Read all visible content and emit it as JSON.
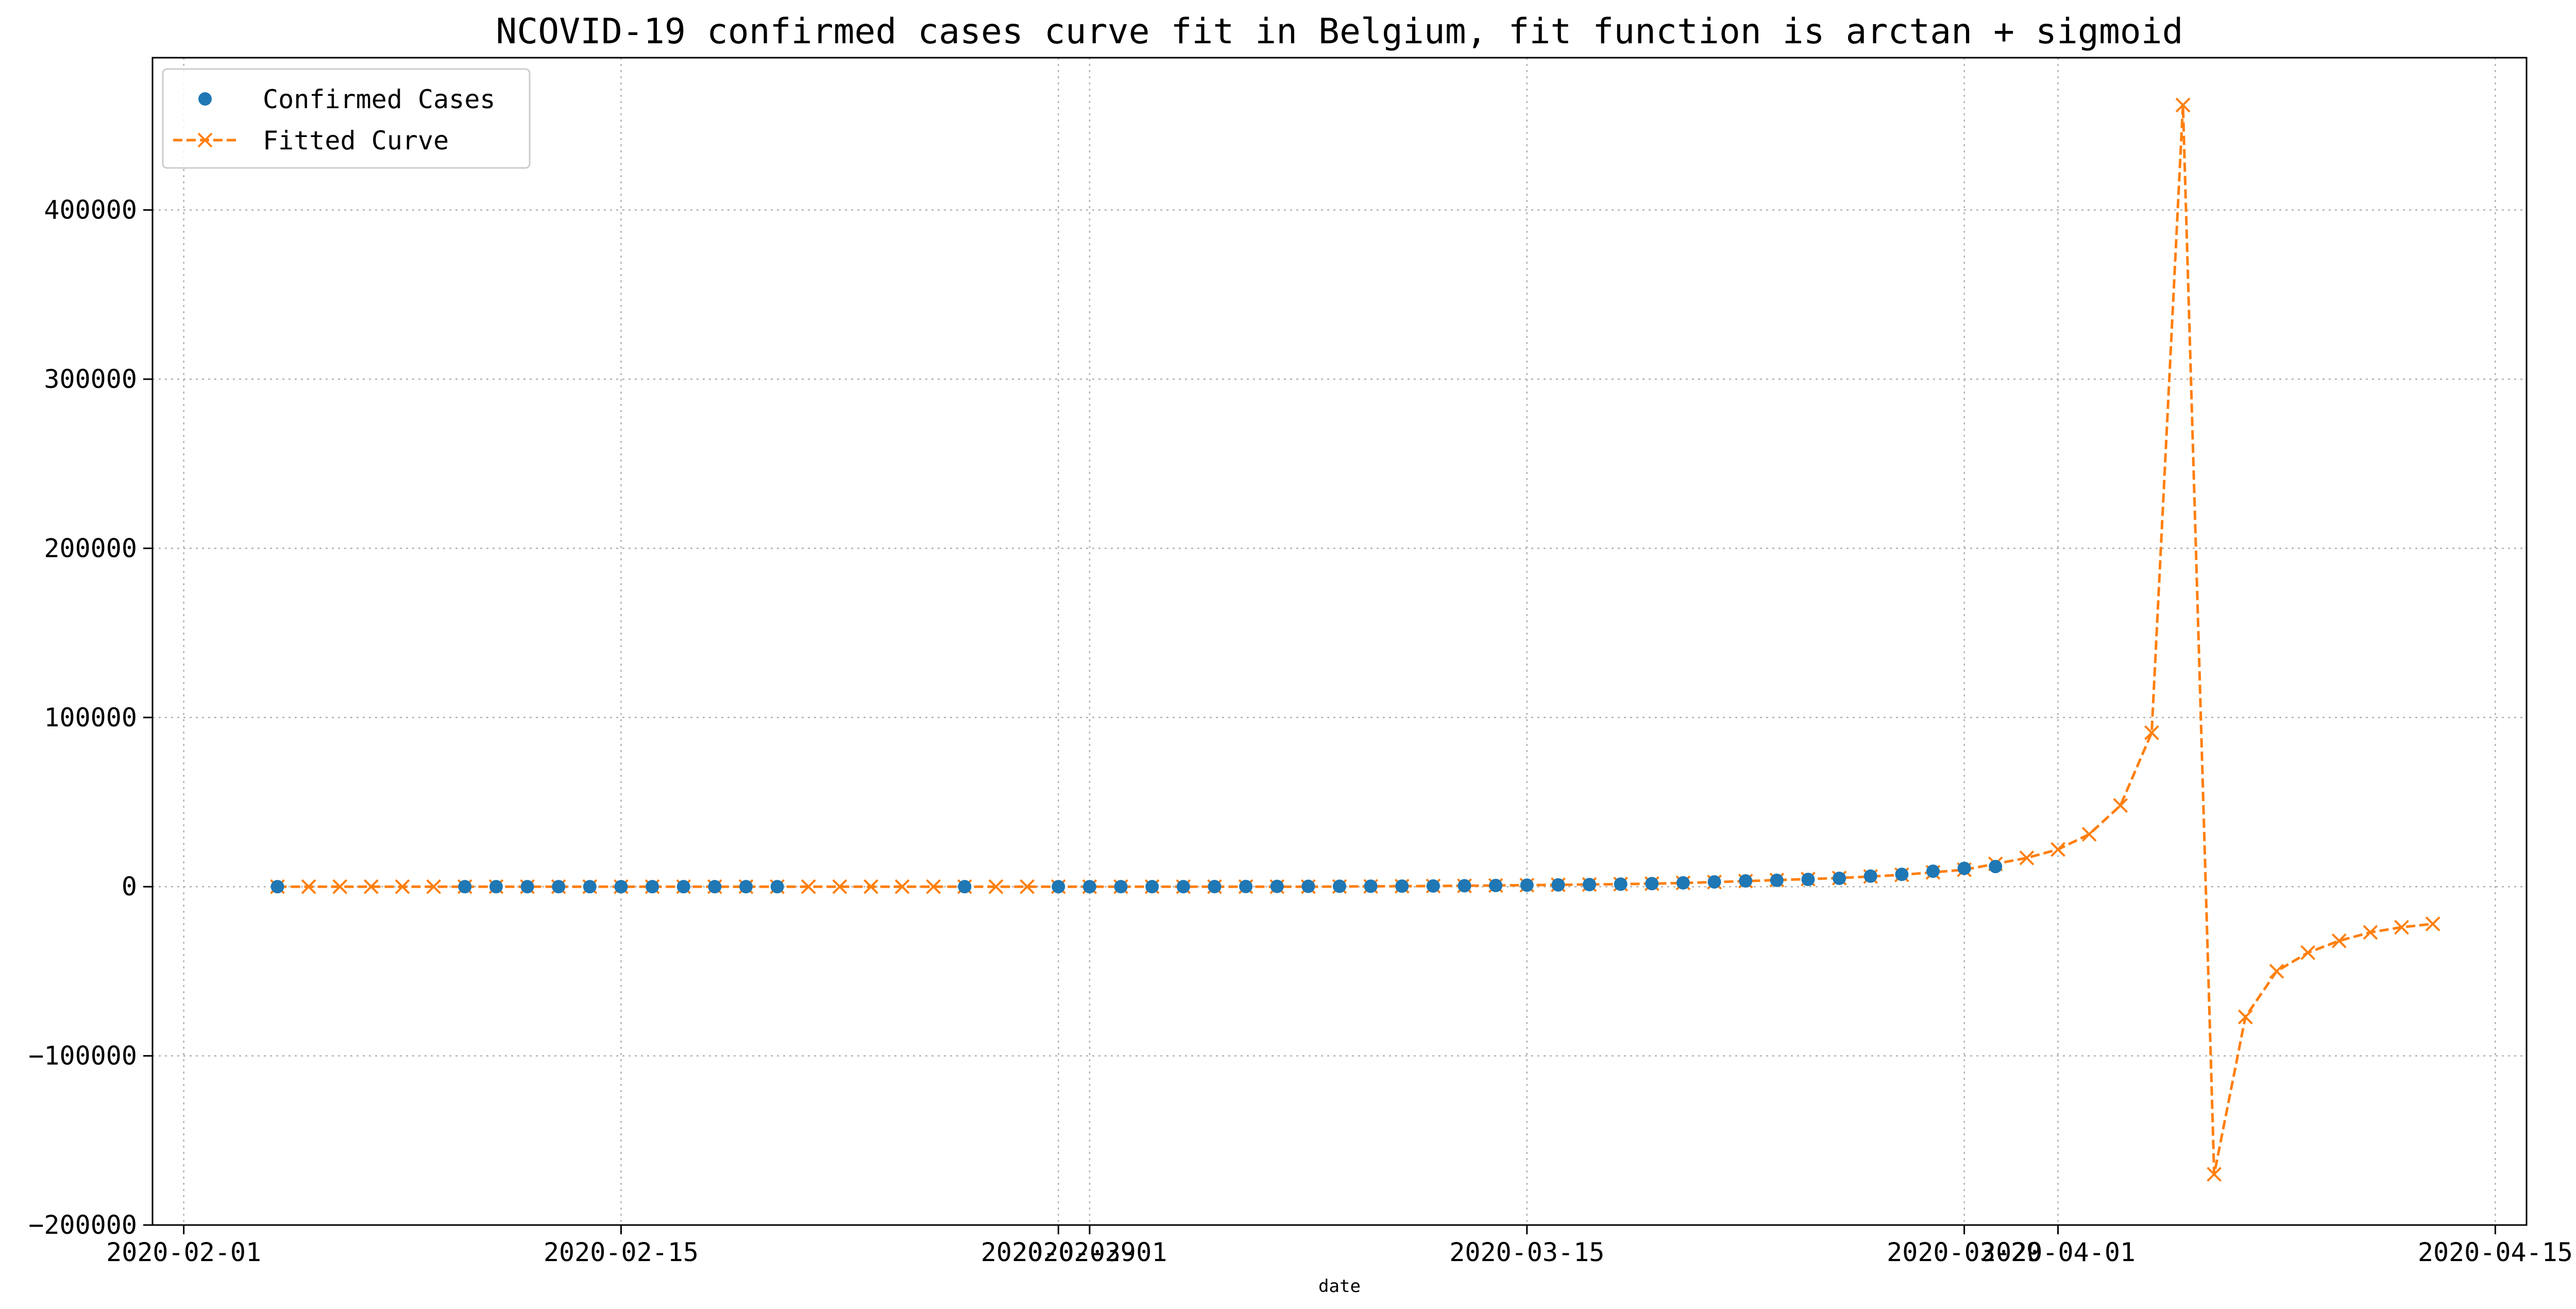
{
  "chart_data": {
    "type": "line",
    "title": "NCOVID-19 confirmed cases curve fit in Belgium, fit function is arctan + sigmoid",
    "xlabel": "date",
    "ylabel": "",
    "x_axis_type": "date",
    "xlim": [
      "2020-01-31",
      "2020-04-16"
    ],
    "ylim": [
      -200000,
      490000
    ],
    "x_ticks": [
      "2020-02-01",
      "2020-02-15",
      "2020-02-29",
      "2020-03-01",
      "2020-03-15",
      "2020-03-29",
      "2020-04-01",
      "2020-04-15"
    ],
    "y_ticks": [
      -200000,
      -100000,
      0,
      100000,
      200000,
      300000,
      400000
    ],
    "y_tick_labels": [
      "−200000",
      "−100000",
      "0",
      "100000",
      "200000",
      "300000",
      "400000"
    ],
    "grid": true,
    "legend_position": "top-left",
    "series": [
      {
        "name": "Confirmed Cases",
        "kind": "points",
        "color": "#1f77b4",
        "marker": "circle",
        "points": [
          [
            "2020-02-04",
            1
          ],
          [
            "2020-02-10",
            1
          ],
          [
            "2020-02-11",
            1
          ],
          [
            "2020-02-12",
            1
          ],
          [
            "2020-02-13",
            1
          ],
          [
            "2020-02-14",
            1
          ],
          [
            "2020-02-15",
            1
          ],
          [
            "2020-02-16",
            1
          ],
          [
            "2020-02-17",
            1
          ],
          [
            "2020-02-18",
            1
          ],
          [
            "2020-02-19",
            1
          ],
          [
            "2020-02-20",
            1
          ],
          [
            "2020-02-26",
            1
          ],
          [
            "2020-02-29",
            1
          ],
          [
            "2020-03-01",
            2
          ],
          [
            "2020-03-02",
            8
          ],
          [
            "2020-03-03",
            13
          ],
          [
            "2020-03-04",
            23
          ],
          [
            "2020-03-05",
            50
          ],
          [
            "2020-03-06",
            109
          ],
          [
            "2020-03-07",
            169
          ],
          [
            "2020-03-08",
            200
          ],
          [
            "2020-03-09",
            239
          ],
          [
            "2020-03-10",
            267
          ],
          [
            "2020-03-11",
            314
          ],
          [
            "2020-03-12",
            399
          ],
          [
            "2020-03-13",
            559
          ],
          [
            "2020-03-14",
            689
          ],
          [
            "2020-03-15",
            886
          ],
          [
            "2020-03-16",
            1058
          ],
          [
            "2020-03-17",
            1243
          ],
          [
            "2020-03-18",
            1486
          ],
          [
            "2020-03-19",
            1795
          ],
          [
            "2020-03-20",
            2257
          ],
          [
            "2020-03-21",
            2815
          ],
          [
            "2020-03-22",
            3401
          ],
          [
            "2020-03-23",
            3743
          ],
          [
            "2020-03-24",
            4269
          ],
          [
            "2020-03-25",
            4937
          ],
          [
            "2020-03-26",
            6235
          ],
          [
            "2020-03-27",
            7284
          ],
          [
            "2020-03-28",
            9134
          ],
          [
            "2020-03-29",
            10836
          ],
          [
            "2020-03-30",
            11899
          ]
        ]
      },
      {
        "name": "Fitted Curve",
        "kind": "dashed-line",
        "color": "#ff7f0e",
        "marker": "x",
        "points": [
          [
            "2020-02-04",
            0
          ],
          [
            "2020-02-05",
            0
          ],
          [
            "2020-02-06",
            0
          ],
          [
            "2020-02-07",
            0
          ],
          [
            "2020-02-08",
            0
          ],
          [
            "2020-02-09",
            0
          ],
          [
            "2020-02-10",
            0
          ],
          [
            "2020-02-11",
            0
          ],
          [
            "2020-02-12",
            0
          ],
          [
            "2020-02-13",
            0
          ],
          [
            "2020-02-14",
            0
          ],
          [
            "2020-02-15",
            0
          ],
          [
            "2020-02-16",
            0
          ],
          [
            "2020-02-17",
            0
          ],
          [
            "2020-02-18",
            0
          ],
          [
            "2020-02-19",
            0
          ],
          [
            "2020-02-20",
            0
          ],
          [
            "2020-02-21",
            0
          ],
          [
            "2020-02-22",
            0
          ],
          [
            "2020-02-23",
            0
          ],
          [
            "2020-02-24",
            0
          ],
          [
            "2020-02-25",
            0
          ],
          [
            "2020-02-26",
            0
          ],
          [
            "2020-02-27",
            0
          ],
          [
            "2020-02-28",
            0
          ],
          [
            "2020-02-29",
            0
          ],
          [
            "2020-03-01",
            0
          ],
          [
            "2020-03-02",
            0
          ],
          [
            "2020-03-03",
            0
          ],
          [
            "2020-03-04",
            0
          ],
          [
            "2020-03-05",
            0
          ],
          [
            "2020-03-06",
            0
          ],
          [
            "2020-03-07",
            0
          ],
          [
            "2020-03-08",
            0
          ],
          [
            "2020-03-09",
            100
          ],
          [
            "2020-03-10",
            200
          ],
          [
            "2020-03-11",
            300
          ],
          [
            "2020-03-12",
            400
          ],
          [
            "2020-03-13",
            500
          ],
          [
            "2020-03-14",
            700
          ],
          [
            "2020-03-15",
            900
          ],
          [
            "2020-03-16",
            1100
          ],
          [
            "2020-03-17",
            1300
          ],
          [
            "2020-03-18",
            1500
          ],
          [
            "2020-03-19",
            1800
          ],
          [
            "2020-03-20",
            2200
          ],
          [
            "2020-03-21",
            2700
          ],
          [
            "2020-03-22",
            3300
          ],
          [
            "2020-03-23",
            3900
          ],
          [
            "2020-03-24",
            4500
          ],
          [
            "2020-03-25",
            5100
          ],
          [
            "2020-03-26",
            6000
          ],
          [
            "2020-03-27",
            7000
          ],
          [
            "2020-03-28",
            8500
          ],
          [
            "2020-03-29",
            10000
          ],
          [
            "2020-03-30",
            13500
          ],
          [
            "2020-03-31",
            17000
          ],
          [
            "2020-04-01",
            22000
          ],
          [
            "2020-04-02",
            31000
          ],
          [
            "2020-04-03",
            48000
          ],
          [
            "2020-04-04",
            91000
          ],
          [
            "2020-04-05",
            462000
          ],
          [
            "2020-04-06",
            -170000
          ],
          [
            "2020-04-07",
            -77000
          ],
          [
            "2020-04-08",
            -50000
          ],
          [
            "2020-04-09",
            -39000
          ],
          [
            "2020-04-10",
            -32000
          ],
          [
            "2020-04-11",
            -27000
          ],
          [
            "2020-04-12",
            -24000
          ],
          [
            "2020-04-13",
            -22000
          ]
        ]
      }
    ]
  }
}
